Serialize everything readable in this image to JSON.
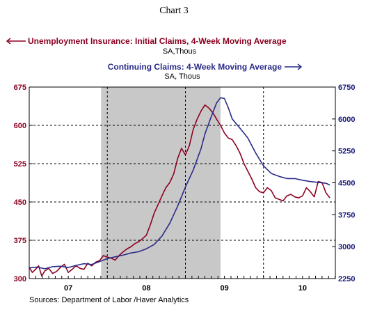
{
  "chart_data": {
    "type": "line",
    "title": "Chart 3",
    "recession_shading": {
      "from": 2007.92,
      "to": 2009.45
    },
    "x_ticks": [
      {
        "label": "07",
        "x": 2007.5
      },
      {
        "label": "08",
        "x": 2008.5
      },
      {
        "label": "09",
        "x": 2009.5
      },
      {
        "label": "10",
        "x": 2010.5
      }
    ],
    "x_range": [
      2007.0,
      2010.92
    ],
    "vertical_gridlines": [
      2008.0,
      2009.0,
      2010.0
    ],
    "left_axis": {
      "ticks": [
        "675",
        "600",
        "525",
        "450",
        "375",
        "300"
      ],
      "range": [
        300,
        675
      ]
    },
    "right_axis": {
      "ticks": [
        "6750",
        "6000",
        "5250",
        "4500",
        "3750",
        "3000",
        "2250"
      ],
      "range": [
        2250,
        6750
      ]
    },
    "horizontal_gridlines": [
      600,
      525,
      450,
      375
    ],
    "series": [
      {
        "name": "Unemployment Insurance: Initial Claims, 4-Week Moving Average",
        "unit": "SA,Thous",
        "axis": "left",
        "color": "#8b0020",
        "legend_arrow": "left",
        "x": [
          2007.0,
          2007.04,
          2007.08,
          2007.12,
          2007.16,
          2007.2,
          2007.25,
          2007.3,
          2007.35,
          2007.4,
          2007.45,
          2007.5,
          2007.55,
          2007.6,
          2007.65,
          2007.7,
          2007.75,
          2007.8,
          2007.85,
          2007.9,
          2007.95,
          2008.0,
          2008.05,
          2008.1,
          2008.15,
          2008.2,
          2008.25,
          2008.3,
          2008.35,
          2008.4,
          2008.45,
          2008.5,
          2008.55,
          2008.6,
          2008.65,
          2008.7,
          2008.75,
          2008.8,
          2008.85,
          2008.9,
          2008.95,
          2009.0,
          2009.05,
          2009.1,
          2009.15,
          2009.2,
          2009.25,
          2009.3,
          2009.35,
          2009.4,
          2009.45,
          2009.5,
          2009.55,
          2009.6,
          2009.65,
          2009.7,
          2009.75,
          2009.8,
          2009.85,
          2009.9,
          2009.95,
          2010.0,
          2010.05,
          2010.1,
          2010.15,
          2010.2,
          2010.25,
          2010.3,
          2010.35,
          2010.4,
          2010.45,
          2010.5,
          2010.55,
          2010.6,
          2010.65,
          2010.7,
          2010.75,
          2010.8,
          2010.85
        ],
        "values": [
          322,
          312,
          318,
          325,
          305,
          315,
          320,
          310,
          314,
          322,
          328,
          312,
          318,
          325,
          320,
          318,
          330,
          325,
          332,
          335,
          345,
          342,
          340,
          336,
          345,
          352,
          358,
          362,
          368,
          372,
          378,
          385,
          405,
          428,
          445,
          462,
          478,
          488,
          505,
          535,
          555,
          542,
          560,
          592,
          612,
          628,
          640,
          634,
          625,
          612,
          600,
          585,
          575,
          572,
          560,
          545,
          525,
          510,
          495,
          478,
          470,
          468,
          478,
          472,
          458,
          455,
          452,
          462,
          465,
          460,
          458,
          462,
          478,
          470,
          460,
          490,
          488,
          468,
          458
        ]
      },
      {
        "name": "Continuing Claims: 4-Week Moving Average",
        "unit": "SA, Thous",
        "axis": "right",
        "color": "#2a2a8a",
        "legend_arrow": "right",
        "x": [
          2007.0,
          2007.1,
          2007.2,
          2007.3,
          2007.4,
          2007.5,
          2007.6,
          2007.7,
          2007.8,
          2007.9,
          2008.0,
          2008.1,
          2008.2,
          2008.3,
          2008.4,
          2008.5,
          2008.6,
          2008.7,
          2008.8,
          2008.9,
          2009.0,
          2009.1,
          2009.2,
          2009.25,
          2009.3,
          2009.35,
          2009.4,
          2009.45,
          2009.5,
          2009.55,
          2009.6,
          2009.7,
          2009.8,
          2009.9,
          2010.0,
          2010.1,
          2010.2,
          2010.3,
          2010.4,
          2010.5,
          2010.6,
          2010.7,
          2010.8,
          2010.85
        ],
        "values": [
          2500,
          2520,
          2480,
          2530,
          2540,
          2510,
          2560,
          2600,
          2580,
          2650,
          2720,
          2760,
          2800,
          2850,
          2880,
          2950,
          3050,
          3250,
          3550,
          3950,
          4400,
          4800,
          5300,
          5650,
          5900,
          6150,
          6380,
          6500,
          6480,
          6260,
          6000,
          5780,
          5550,
          5200,
          4900,
          4720,
          4650,
          4600,
          4600,
          4560,
          4530,
          4510,
          4490,
          4450
        ]
      }
    ]
  },
  "footer": {
    "sources": "Sources:  Department of Labor /Haver Analytics"
  }
}
